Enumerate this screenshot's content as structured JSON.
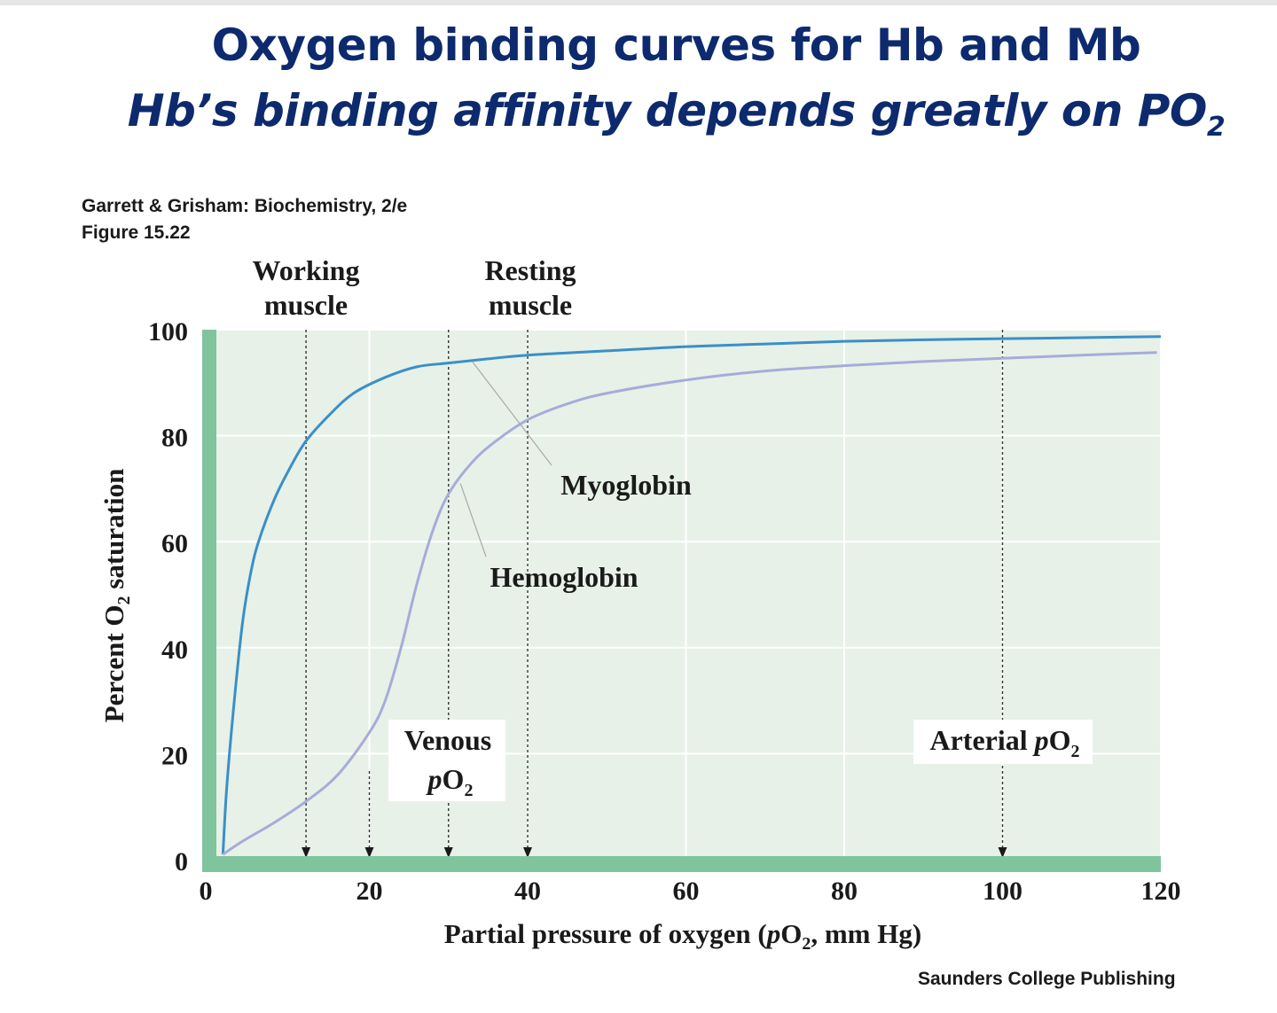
{
  "title": {
    "line1": "Oxygen binding curves for Hb and Mb",
    "line2_main": "Hbʼs binding affinity depends greatly on PO",
    "line2_sub": "2"
  },
  "source": {
    "book": "Garrett & Grisham: Biochemistry, 2/e",
    "figure": "Figure 15.22",
    "publisher": "Saunders College Publishing"
  },
  "colors": {
    "plot_bg": "#e7f1e8",
    "axis_band": "#7fc49d",
    "myoglobin": "#3b8fc7",
    "hemoglobin": "#a6acd9",
    "grid": "#ffffff"
  },
  "chart_data": {
    "type": "line",
    "xlabel": "Partial pressure of oxygen (",
    "xlabel_italic": "p",
    "xlabel_tail": "O",
    "xlabel_sub": "2",
    "xlabel_end": ", mm Hg)",
    "ylabel": "Percent  O",
    "ylabel_sub": "2",
    "ylabel_end": " saturation",
    "xlim": [
      0,
      120
    ],
    "ylim": [
      0,
      100
    ],
    "x_ticks": [
      0,
      20,
      40,
      60,
      80,
      100,
      120
    ],
    "y_ticks": [
      0,
      20,
      40,
      60,
      80,
      100
    ],
    "grid": true,
    "series": [
      {
        "name": "Myoglobin",
        "x": [
          1.5,
          2,
          3,
          4,
          5,
          6,
          8,
          10,
          12,
          15,
          18,
          22,
          26,
          30,
          35,
          40,
          50,
          60,
          70,
          80,
          90,
          100,
          110,
          120
        ],
        "y": [
          1,
          14,
          31,
          45,
          54,
          60,
          68,
          74,
          79,
          84,
          88,
          91,
          93,
          93.7,
          94.5,
          95.2,
          96,
          96.8,
          97.3,
          97.8,
          98.1,
          98.3,
          98.5,
          98.7
        ]
      },
      {
        "name": "Hemoglobin",
        "x": [
          1.5,
          4,
          8,
          12,
          16,
          20,
          22,
          24,
          26,
          28,
          30,
          33,
          36,
          40,
          45,
          50,
          60,
          70,
          80,
          90,
          100,
          110,
          119.5
        ],
        "y": [
          1,
          3.5,
          7,
          11,
          16,
          24,
          30,
          40,
          52,
          62,
          69,
          75,
          79,
          83,
          86,
          88,
          90.5,
          92.2,
          93.2,
          94,
          94.6,
          95.2,
          95.7
        ]
      }
    ],
    "markers": [
      {
        "x": 12,
        "label_lines": [
          "Working",
          "muscle"
        ],
        "label_pos": "top"
      },
      {
        "x": 20,
        "label_lines": [],
        "label_pos": "none"
      },
      {
        "x": 30,
        "label_lines": [
          "Venous",
          "pO2"
        ],
        "label_pos": "bottom"
      },
      {
        "x": 40,
        "label_lines": [
          "Resting",
          "muscle"
        ],
        "label_pos": "top"
      },
      {
        "x": 100,
        "label_lines": [
          "Arterial pO2"
        ],
        "label_pos": "bottom"
      }
    ],
    "annotations": {
      "venous_label_line1": "Venous",
      "venous_label_p": "p",
      "venous_label_o": "O",
      "venous_label_sub": "2",
      "arterial_label_main": "Arterial ",
      "arterial_label_p": "p",
      "arterial_label_o": "O",
      "arterial_label_sub": "2",
      "working_line1": "Working",
      "working_line2": "muscle",
      "resting_line1": "Resting",
      "resting_line2": "muscle",
      "myoglobin_label": "Myoglobin",
      "hemoglobin_label": "Hemoglobin"
    }
  }
}
